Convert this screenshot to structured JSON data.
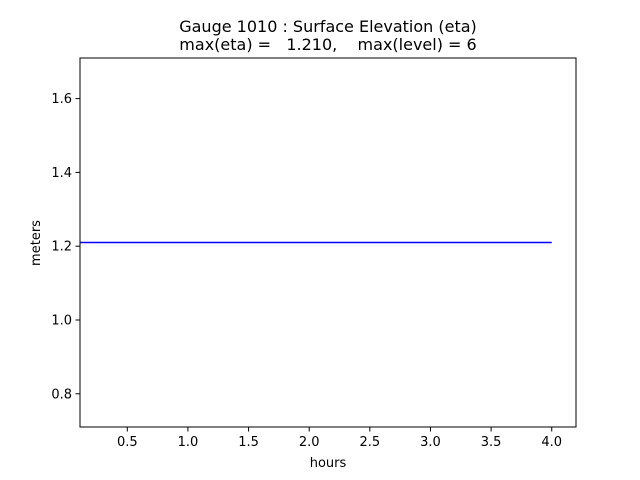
{
  "chart_data": {
    "type": "line",
    "title": "Gauge 1010 : Surface Elevation (eta)",
    "subtitle": "max(eta) =   1.210,    max(level) = 6",
    "xlabel": "hours",
    "ylabel": "meters",
    "xlim": [
      0.11,
      4.2
    ],
    "ylim": [
      0.71,
      1.71
    ],
    "xticks": [
      0.5,
      1.0,
      1.5,
      2.0,
      2.5,
      3.0,
      3.5,
      4.0
    ],
    "xtick_labels": [
      "0.5",
      "1.0",
      "1.5",
      "2.0",
      "2.5",
      "3.0",
      "3.5",
      "4.0"
    ],
    "yticks": [
      0.8,
      1.0,
      1.2,
      1.4,
      1.6
    ],
    "ytick_labels": [
      "0.8",
      "1.0",
      "1.2",
      "1.4",
      "1.6"
    ],
    "grid": false,
    "series": [
      {
        "color": "#0000ff",
        "x": [
          0.11,
          0.5,
          1.0,
          1.5,
          2.0,
          2.5,
          3.0,
          3.5,
          4.0
        ],
        "y": [
          1.21,
          1.21,
          1.21,
          1.21,
          1.21,
          1.21,
          1.21,
          1.21,
          1.21
        ]
      }
    ]
  }
}
